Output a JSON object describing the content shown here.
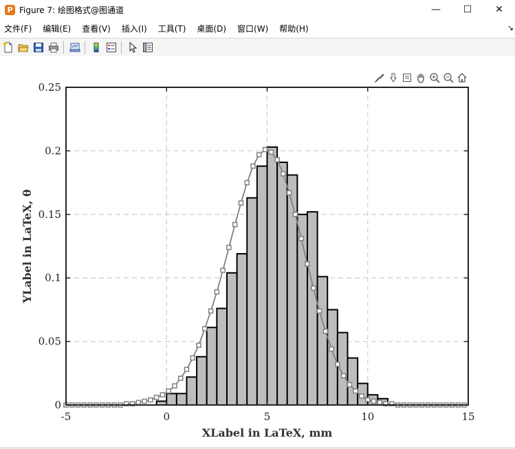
{
  "window": {
    "title": "Figure 7: 绘图格式@图通道",
    "icon_letter": "P",
    "minimize_glyph": "—",
    "maximize_glyph": "☐",
    "close_glyph": "✕"
  },
  "menu": {
    "items": [
      "文件(F)",
      "编辑(E)",
      "查看(V)",
      "插入(I)",
      "工具(T)",
      "桌面(D)",
      "窗口(W)",
      "帮助(H)"
    ],
    "overflow_glyph": "↘"
  },
  "toolbar": {
    "icons": [
      "new-file-icon",
      "open-folder-icon",
      "save-icon",
      "print-icon",
      "link-plot-icon",
      "colorbar-icon",
      "legend-icon",
      "pointer-icon",
      "property-editor-icon"
    ]
  },
  "axes_toolbar": {
    "icons": [
      "brush-icon",
      "data-tips-icon",
      "export-icon",
      "pan-icon",
      "zoom-in-icon",
      "zoom-out-icon",
      "home-icon"
    ]
  },
  "chart_data": {
    "type": "bar",
    "xlabel": "XLabel in LaTeX, mm",
    "ylabel": "YLabel in LaTeX, θ",
    "xlim": [
      -5,
      15
    ],
    "ylim": [
      0,
      0.25
    ],
    "xticks": [
      -5,
      0,
      5,
      10,
      15
    ],
    "xtick_labels": [
      "-5",
      "0",
      "5",
      "10",
      "15"
    ],
    "yticks": [
      0,
      0.05,
      0.1,
      0.15,
      0.2,
      0.25
    ],
    "ytick_labels": [
      "0",
      "0.05",
      "0.1",
      "0.15",
      "0.2",
      "0.25"
    ],
    "grid": true,
    "bar_width": 0.5,
    "bar_color": "#bdbdbd",
    "bar_edge_color": "#000000",
    "bar_edges": [
      -0.5,
      0,
      0.5,
      1,
      1.5,
      2,
      2.5,
      3,
      3.5,
      4,
      4.5,
      5,
      5.5,
      6,
      6.5,
      7,
      7.5,
      8,
      8.5,
      9,
      9.5,
      10,
      10.5
    ],
    "bar_values": [
      0.003,
      0.009,
      0.009,
      0.022,
      0.038,
      0.061,
      0.076,
      0.104,
      0.119,
      0.163,
      0.188,
      0.203,
      0.191,
      0.181,
      0.15,
      0.152,
      0.101,
      0.075,
      0.057,
      0.037,
      0.017,
      0.008,
      0.005
    ],
    "curve": {
      "color": "#808080",
      "marker": "square",
      "x": [
        -5,
        -4.7,
        -4.4,
        -4.1,
        -3.8,
        -3.5,
        -3.2,
        -2.9,
        -2.6,
        -2.3,
        -2.0,
        -1.7,
        -1.4,
        -1.1,
        -0.8,
        -0.5,
        -0.2,
        0.1,
        0.4,
        0.7,
        1.0,
        1.3,
        1.6,
        1.9,
        2.2,
        2.5,
        2.8,
        3.1,
        3.4,
        3.7,
        4.0,
        4.3,
        4.6,
        4.9,
        5.2,
        5.5,
        5.8,
        6.1,
        6.4,
        6.7,
        7.0,
        7.3,
        7.6,
        7.9,
        8.2,
        8.5,
        8.8,
        9.1,
        9.4,
        9.7,
        10.0,
        10.3,
        10.6,
        10.9,
        11.2,
        11.5,
        11.8,
        12.1,
        12.4,
        12.7,
        13.0,
        13.3,
        13.6,
        13.9,
        14.2,
        14.5,
        14.8
      ],
      "y": [
        0.0,
        0.0,
        0.0,
        0.0,
        0.0,
        0.0,
        0.0,
        0.0,
        0.0,
        0.0,
        0.001,
        0.001,
        0.002,
        0.003,
        0.004,
        0.006,
        0.008,
        0.011,
        0.015,
        0.021,
        0.028,
        0.037,
        0.047,
        0.06,
        0.074,
        0.089,
        0.106,
        0.124,
        0.142,
        0.159,
        0.175,
        0.188,
        0.197,
        0.201,
        0.199,
        0.193,
        0.182,
        0.167,
        0.15,
        0.131,
        0.111,
        0.092,
        0.074,
        0.058,
        0.044,
        0.032,
        0.023,
        0.016,
        0.011,
        0.007,
        0.004,
        0.003,
        0.002,
        0.001,
        0.001,
        0.0,
        0.0,
        0.0,
        0.0,
        0.0,
        0.0,
        0.0,
        0.0,
        0.0,
        0.0,
        0.0,
        0.0
      ]
    }
  }
}
